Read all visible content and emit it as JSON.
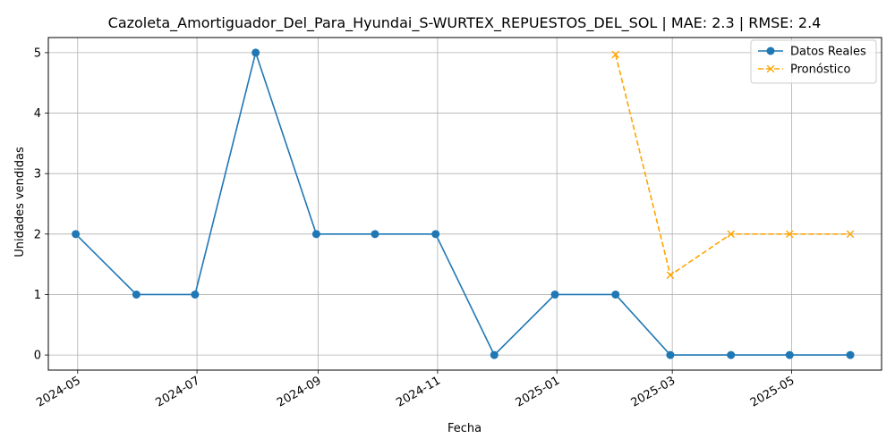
{
  "chart_data": {
    "type": "line",
    "title": "Cazoleta_Amortiguador_Del_Para_Hyundai_S-WURTEX_REPUESTOS_DEL_SOL | MAE: 2.3 | RMSE: 2.4",
    "xlabel": "Fecha",
    "ylabel": "Unidades vendidas",
    "x_ticks": [
      "2024-05",
      "2024-07",
      "2024-09",
      "2024-11",
      "2025-01",
      "2025-03",
      "2025-05"
    ],
    "y_ticks": [
      "0",
      "1",
      "2",
      "3",
      "4",
      "5"
    ],
    "ylim": [
      -0.25,
      5.25
    ],
    "xlim": [
      "2024-04-16",
      "2025-06-16"
    ],
    "grid": true,
    "legend_position": "top-right",
    "series": [
      {
        "name": "Datos Reales",
        "color": "#1f77b4",
        "line_style": "solid",
        "marker": "circle",
        "x": [
          "2024-04-30",
          "2024-05-31",
          "2024-06-30",
          "2024-07-31",
          "2024-08-31",
          "2024-09-30",
          "2024-10-31",
          "2024-11-30",
          "2024-12-31",
          "2025-01-31",
          "2025-02-28",
          "2025-03-31",
          "2025-04-30",
          "2025-05-31"
        ],
        "values": [
          2,
          1,
          1,
          5,
          2,
          2,
          2,
          0,
          1,
          1,
          0,
          0,
          0,
          0
        ]
      },
      {
        "name": "Pronóstico",
        "color": "#ffa500",
        "line_style": "dashed",
        "marker": "x",
        "x": [
          "2025-01-31",
          "2025-02-28",
          "2025-03-31",
          "2025-04-30",
          "2025-05-31"
        ],
        "values": [
          4.97,
          1.32,
          2,
          2,
          2
        ]
      }
    ]
  }
}
